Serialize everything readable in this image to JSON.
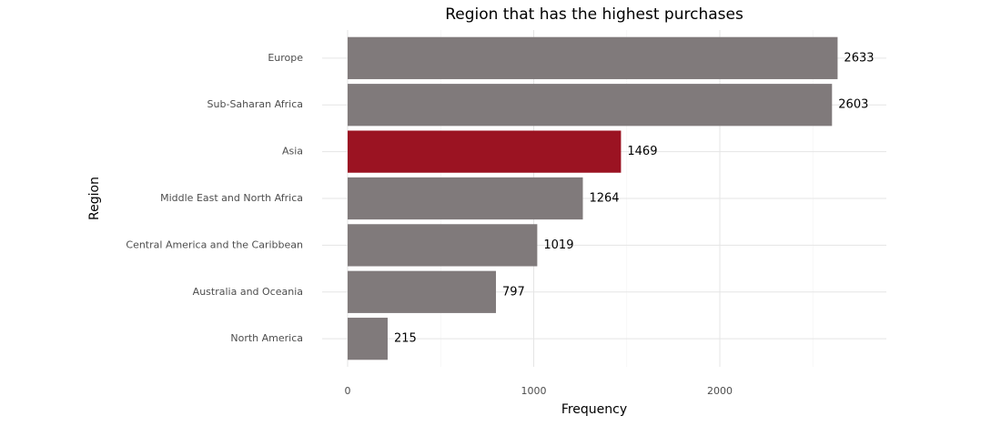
{
  "chart_data": {
    "type": "bar",
    "orientation": "horizontal",
    "title": "Region that has the highest purchases",
    "x_label": "Frequency",
    "y_label": "Region",
    "categories": [
      "Europe",
      "Sub-Saharan Africa",
      "Asia",
      "Middle East and North Africa",
      "Central America and the Caribbean",
      "Australia and Oceania",
      "North America"
    ],
    "values": [
      2633,
      2603,
      1469,
      1264,
      1019,
      797,
      215
    ],
    "colors": [
      "#807a7b",
      "#807a7b",
      "#9b1322",
      "#807a7b",
      "#807a7b",
      "#807a7b",
      "#807a7b"
    ],
    "xlim": [
      -137,
      2895
    ],
    "xticks": [
      0,
      1000,
      2000
    ],
    "minor_xticks": [
      500,
      1500,
      2500
    ],
    "grid": true
  }
}
